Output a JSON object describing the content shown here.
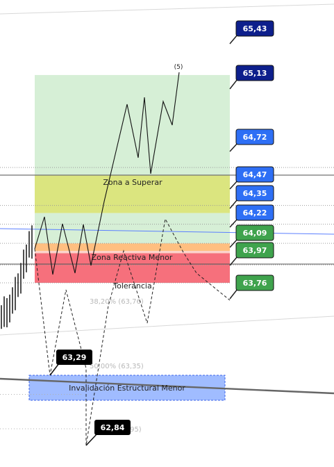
{
  "chart_data": {
    "type": "line",
    "title": "",
    "xlabel": "",
    "ylabel": "",
    "ylim": [
      62.74,
      65.55
    ],
    "grid": false,
    "legend": "none",
    "zones": [
      {
        "name": "Zona de Objetivo",
        "label": "",
        "from": 64.47,
        "to": 65.13,
        "color": "#d6efd6"
      },
      {
        "name": "Zona a Superar",
        "label": "Zona a Superar",
        "from": 64.22,
        "to": 64.47,
        "color": "#dbe57f"
      },
      {
        "name": "Zona Soporte",
        "label": "",
        "from": 64.02,
        "to": 64.22,
        "color": "#d6efd6"
      },
      {
        "name": "Zona Reactiva Menor",
        "label": "Zona Reactiva Menor",
        "from": 63.97,
        "to": 64.02,
        "color": "#ffbf80"
      },
      {
        "name": "Banda",
        "label": "",
        "from": 63.955,
        "to": 63.97,
        "color": "#fbd2c9"
      },
      {
        "name": "Tolerancia",
        "label": "Tolerancia",
        "from": 63.76,
        "to": 63.955,
        "color": "#f6707c"
      },
      {
        "name": "Invalidación",
        "label": "Invalidación Estructural Menor",
        "from": 63.23,
        "to": 63.265,
        "color": "#8fb0ff"
      }
    ],
    "price_tags": [
      {
        "value": "65,43",
        "price": 65.43,
        "color": "#0d1f8c"
      },
      {
        "value": "65,13",
        "price": 65.13,
        "color": "#0d1f8c"
      },
      {
        "value": "64,72",
        "price": 64.72,
        "color": "#2e6ff5"
      },
      {
        "value": "64,47",
        "price": 64.47,
        "color": "#2e6ff5"
      },
      {
        "value": "64,35",
        "price": 64.35,
        "color": "#2e6ff5"
      },
      {
        "value": "64,22",
        "price": 64.22,
        "color": "#2e6ff5"
      },
      {
        "value": "64,09",
        "price": 64.09,
        "color": "#3fa34d"
      },
      {
        "value": "63,97",
        "price": 63.97,
        "color": "#3fa34d"
      },
      {
        "value": "63,76",
        "price": 63.76,
        "color": "#3fa34d"
      }
    ],
    "black_tags": [
      {
        "value": "63,29",
        "price": 63.29
      },
      {
        "value": "62,84",
        "price": 62.84
      }
    ],
    "fib_labels": [
      {
        "text": "38,20% (63,76)",
        "price": 63.76
      },
      {
        "text": "50,00% (63,35)",
        "price": 63.35
      },
      {
        "text": "( 95)",
        "price": 62.95
      }
    ],
    "horizontal_levels": [
      64.47,
      64.22,
      63.97
    ],
    "projection_path": [
      64.02,
      64.19,
      63.87,
      64.18,
      63.87,
      64.18,
      63.95,
      64.35,
      64.88,
      64.42,
      64.91,
      64.39,
      64.87,
      64.75,
      65.12
    ],
    "wave_label": "(5)",
    "dashed_path": [
      64.02,
      63.33,
      63.83,
      63.29,
      62.86,
      63.75,
      64.03,
      63.86,
      64.19,
      63.86,
      64.2,
      63.77
    ],
    "price_bars": [
      63.53,
      63.57,
      63.54,
      63.6,
      63.63,
      63.68,
      63.74,
      63.79,
      63.86,
      63.93,
      64.0,
      64.02
    ],
    "colors": {
      "trendline": "#5b7fff",
      "gray_line": "#707070",
      "price_bar": "#222222"
    }
  }
}
